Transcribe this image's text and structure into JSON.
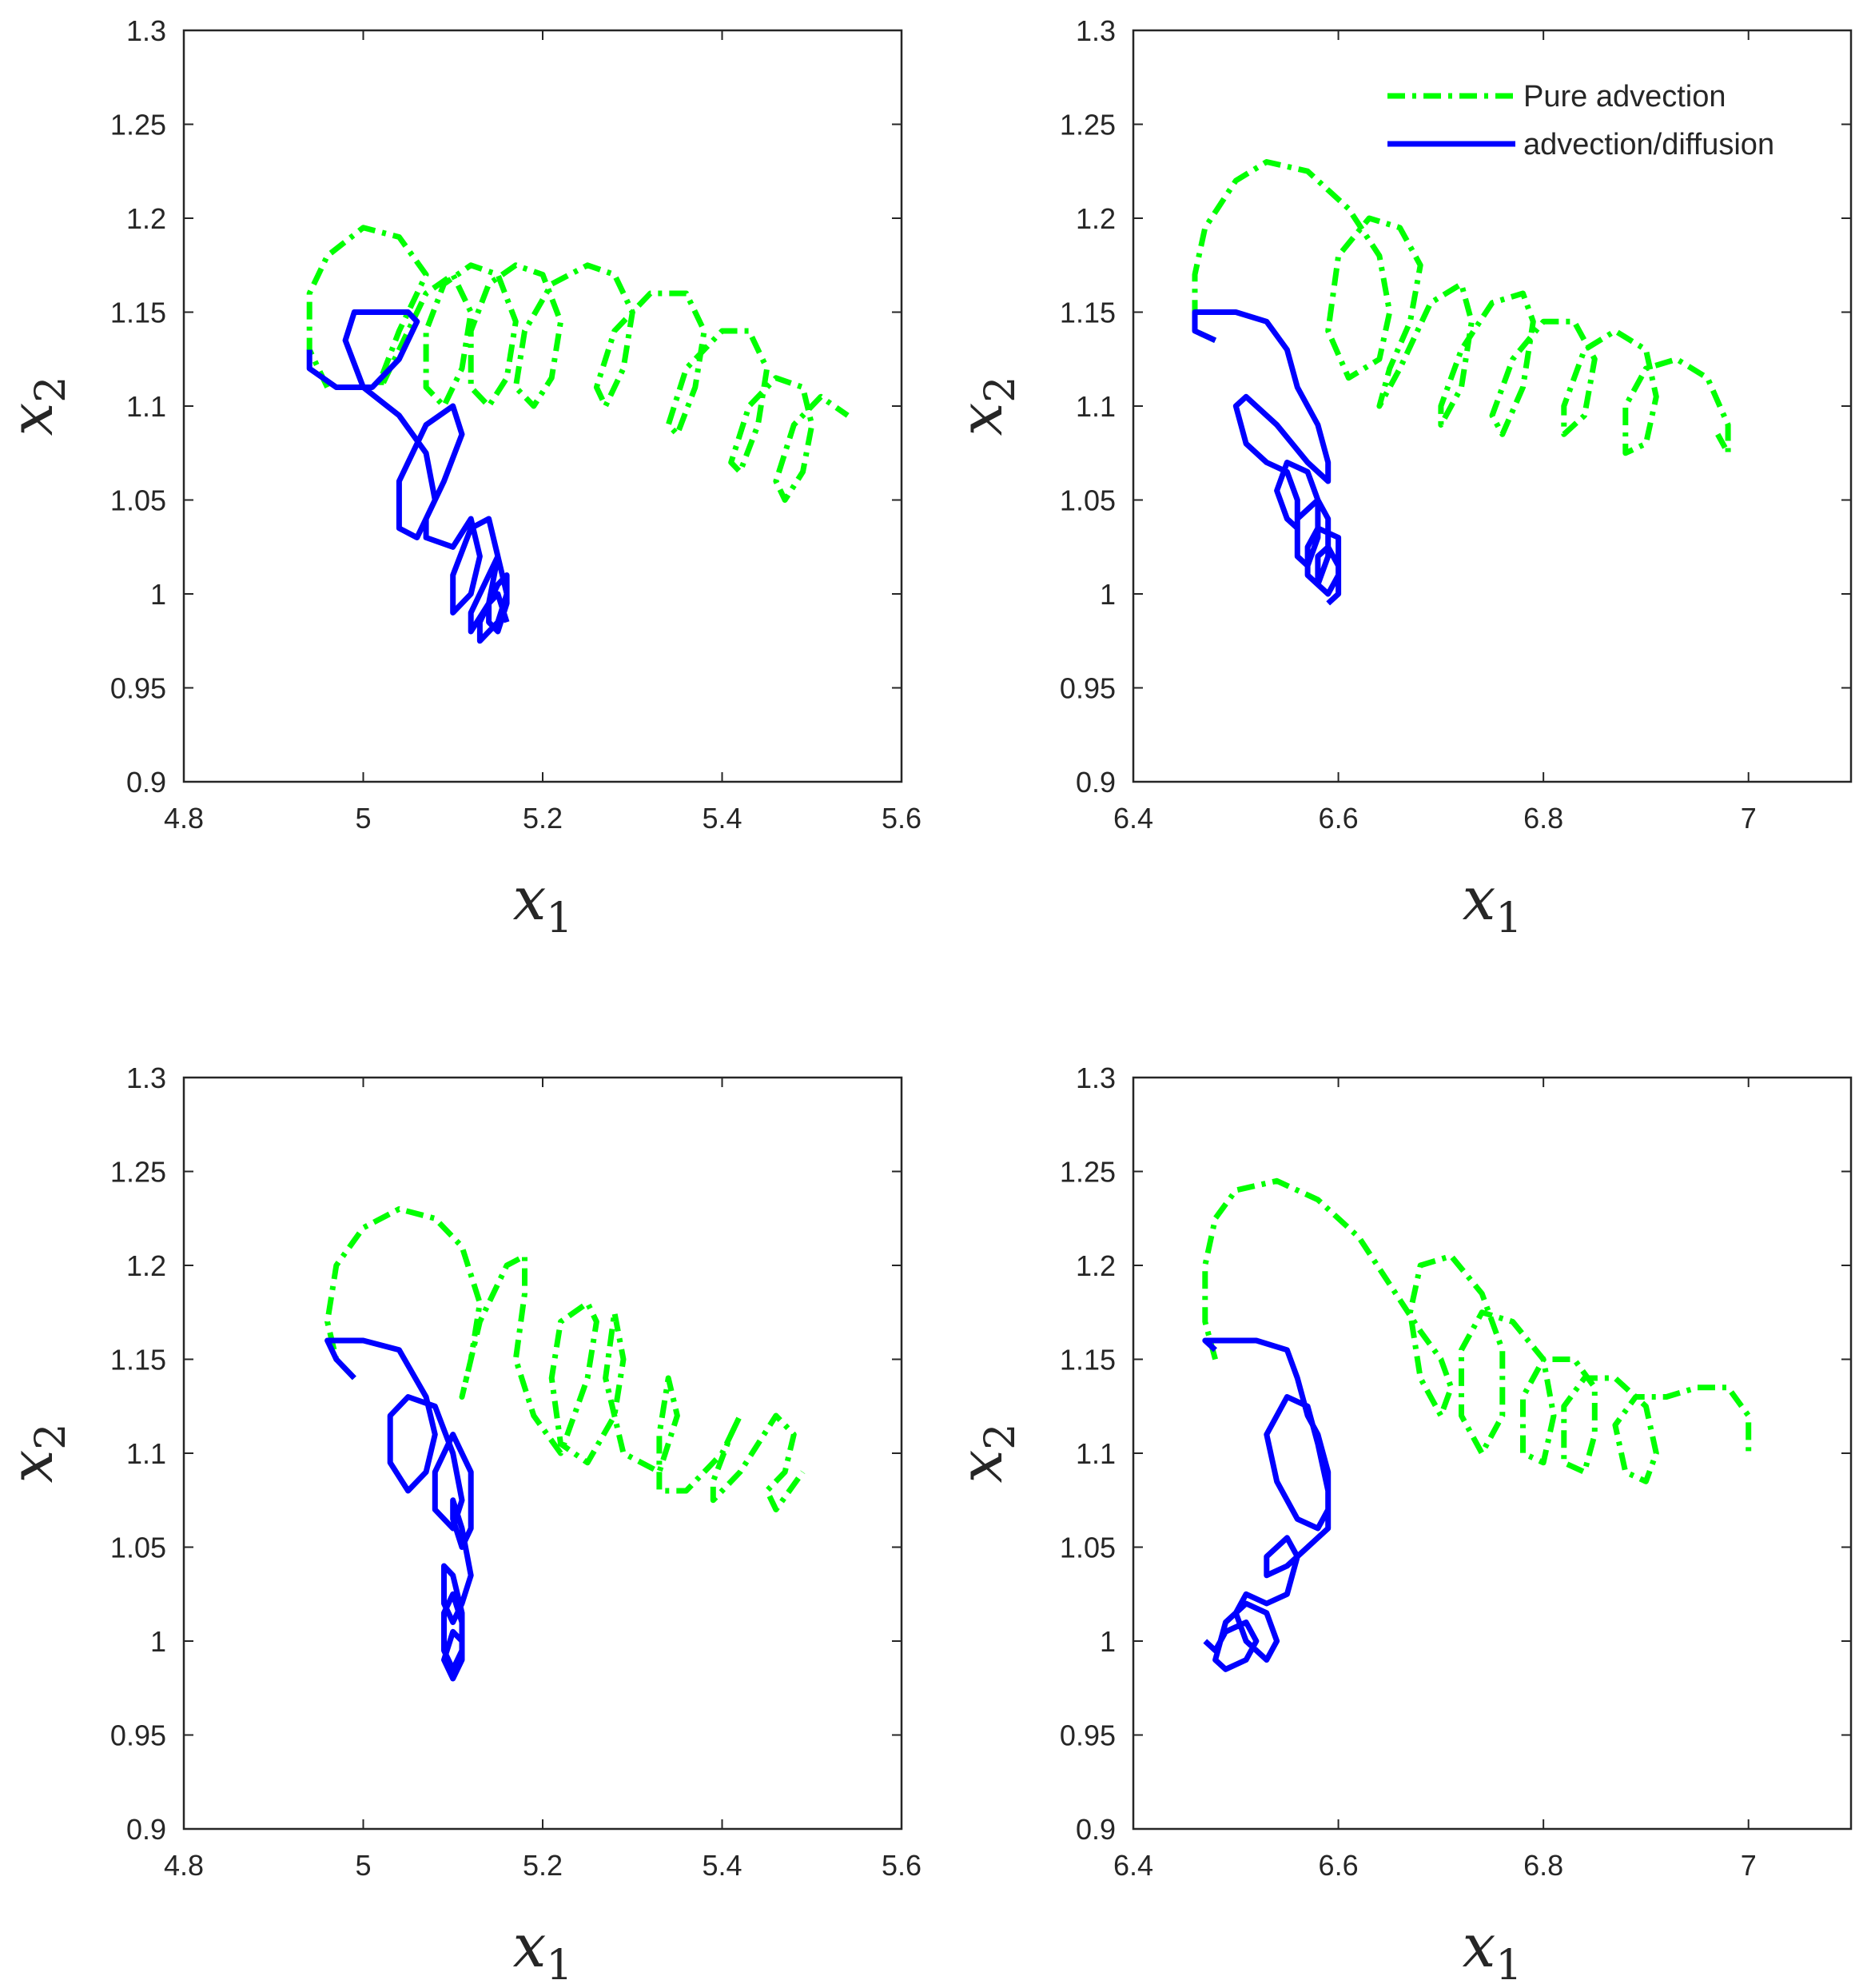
{
  "figure": {
    "colors": {
      "pure_advection": "#00ff00",
      "advection_diffusion": "#0000ff",
      "axes": "#262626"
    }
  },
  "chart_data": [
    {
      "type": "line",
      "panel": "top-left",
      "xlim": [
        4.8,
        5.6
      ],
      "ylim": [
        0.9,
        1.3
      ],
      "xticks": [
        "4.8",
        "5",
        "5.2",
        "5.4",
        "5.6"
      ],
      "yticks": [
        "0.9",
        "0.95",
        "1",
        "1.05",
        "1.1",
        "1.15",
        "1.2",
        "1.25",
        "1.3"
      ],
      "xlabel": "x",
      "xlabel_sub": "1",
      "ylabel": "x",
      "ylabel_sub": "2",
      "grid": false,
      "legend": null,
      "series": [
        {
          "name": "Pure advection",
          "style": "dash-dot",
          "color": "#00ff00",
          "x": [
            4.96,
            4.94,
            4.94,
            4.96,
            5.0,
            5.04,
            5.07,
            5.04,
            5.02,
            5.02,
            5.04,
            5.07,
            5.1,
            5.12,
            5.11,
            5.09,
            5.07,
            5.07,
            5.09,
            5.12,
            5.15,
            5.17,
            5.16,
            5.14,
            5.12,
            5.12,
            5.14,
            5.17,
            5.2,
            5.22,
            5.21,
            5.19,
            5.17,
            5.18,
            5.21,
            5.25,
            5.28,
            5.3,
            5.29,
            5.27,
            5.26,
            5.28,
            5.32,
            5.36,
            5.38,
            5.37,
            5.35,
            5.34,
            5.36,
            5.4,
            5.43,
            5.45,
            5.44,
            5.42,
            5.41,
            5.43,
            5.46,
            5.49,
            5.5,
            5.49,
            5.47,
            5.46,
            5.48,
            5.51,
            5.54
          ],
          "y": [
            1.11,
            1.13,
            1.16,
            1.18,
            1.195,
            1.19,
            1.17,
            1.14,
            1.115,
            1.11,
            1.13,
            1.16,
            1.17,
            1.15,
            1.12,
            1.1,
            1.11,
            1.14,
            1.165,
            1.175,
            1.17,
            1.145,
            1.115,
            1.1,
            1.11,
            1.14,
            1.165,
            1.175,
            1.17,
            1.145,
            1.115,
            1.1,
            1.11,
            1.14,
            1.165,
            1.175,
            1.17,
            1.15,
            1.12,
            1.1,
            1.11,
            1.14,
            1.16,
            1.16,
            1.14,
            1.11,
            1.085,
            1.09,
            1.12,
            1.14,
            1.14,
            1.12,
            1.09,
            1.065,
            1.07,
            1.1,
            1.115,
            1.11,
            1.09,
            1.065,
            1.05,
            1.06,
            1.09,
            1.105,
            1.095
          ]
        },
        {
          "name": "advection/diffusion",
          "style": "solid",
          "color": "#0000ff",
          "x": [
            4.94,
            4.94,
            4.97,
            5.01,
            5.04,
            5.06,
            5.05,
            5.02,
            4.99,
            4.98,
            5.0,
            5.04,
            5.07,
            5.08,
            5.06,
            5.04,
            5.04,
            5.07,
            5.1,
            5.11,
            5.09,
            5.07,
            5.07,
            5.1,
            5.12,
            5.13,
            5.12,
            5.1,
            5.1,
            5.12,
            5.14,
            5.15,
            5.14,
            5.12,
            5.12,
            5.14,
            5.15,
            5.16,
            5.15,
            5.13,
            5.13,
            5.15,
            5.16,
            5.16,
            5.15,
            5.14,
            5.14,
            5.15,
            5.16
          ],
          "y": [
            1.13,
            1.12,
            1.11,
            1.11,
            1.125,
            1.145,
            1.15,
            1.15,
            1.15,
            1.135,
            1.11,
            1.095,
            1.075,
            1.05,
            1.03,
            1.035,
            1.06,
            1.09,
            1.1,
            1.085,
            1.06,
            1.04,
            1.03,
            1.025,
            1.04,
            1.02,
            1.0,
            0.99,
            1.01,
            1.035,
            1.04,
            1.02,
            0.995,
            0.98,
            0.99,
            1.01,
            1.02,
            1.0,
            0.985,
            0.975,
            0.985,
            1.005,
            1.01,
            0.995,
            0.98,
            0.985,
            0.995,
            1.0,
            0.985
          ]
        }
      ]
    },
    {
      "type": "line",
      "panel": "top-right",
      "xlim": [
        6.4,
        7.1
      ],
      "ylim": [
        0.9,
        1.3
      ],
      "xticks": [
        "6.4",
        "6.6",
        "6.8",
        "7"
      ],
      "yticks": [
        "0.9",
        "0.95",
        "1",
        "1.05",
        "1.1",
        "1.15",
        "1.2",
        "1.25",
        "1.3"
      ],
      "xlabel": "x",
      "xlabel_sub": "1",
      "ylabel": "x",
      "ylabel_sub": "2",
      "grid": false,
      "legend": {
        "placement": "top-right",
        "entries": [
          "Pure advection",
          "advection/diffusion"
        ]
      },
      "series": [
        {
          "name": "Pure advection",
          "style": "dash-dot",
          "color": "#00ff00",
          "x": [
            6.48,
            6.46,
            6.46,
            6.47,
            6.5,
            6.53,
            6.57,
            6.61,
            6.64,
            6.65,
            6.64,
            6.61,
            6.59,
            6.6,
            6.63,
            6.66,
            6.68,
            6.67,
            6.65,
            6.64,
            6.66,
            6.69,
            6.72,
            6.73,
            6.72,
            6.7,
            6.7,
            6.72,
            6.75,
            6.78,
            6.79,
            6.78,
            6.76,
            6.75,
            6.77,
            6.8,
            6.83,
            6.85,
            6.84,
            6.82,
            6.82,
            6.84,
            6.87,
            6.9,
            6.91,
            6.9,
            6.88,
            6.88,
            6.9,
            6.93,
            6.96,
            6.98,
            6.98,
            6.97
          ],
          "y": [
            1.135,
            1.14,
            1.17,
            1.195,
            1.22,
            1.23,
            1.225,
            1.205,
            1.18,
            1.15,
            1.125,
            1.115,
            1.14,
            1.18,
            1.2,
            1.195,
            1.175,
            1.145,
            1.12,
            1.1,
            1.12,
            1.155,
            1.165,
            1.145,
            1.11,
            1.09,
            1.1,
            1.13,
            1.155,
            1.16,
            1.145,
            1.11,
            1.085,
            1.095,
            1.125,
            1.145,
            1.145,
            1.125,
            1.095,
            1.085,
            1.1,
            1.13,
            1.14,
            1.13,
            1.105,
            1.08,
            1.075,
            1.1,
            1.12,
            1.125,
            1.115,
            1.09,
            1.075,
            1.085
          ]
        },
        {
          "name": "advection/diffusion",
          "style": "solid",
          "color": "#0000ff",
          "x": [
            6.48,
            6.46,
            6.46,
            6.5,
            6.53,
            6.55,
            6.56,
            6.58,
            6.59,
            6.59,
            6.57,
            6.54,
            6.51,
            6.5,
            6.51,
            6.53,
            6.55,
            6.56,
            6.56,
            6.55,
            6.54,
            6.55,
            6.57,
            6.58,
            6.58,
            6.57,
            6.56,
            6.56,
            6.58,
            6.59,
            6.59,
            6.58,
            6.57,
            6.57,
            6.58,
            6.6,
            6.6,
            6.59,
            6.58,
            6.58,
            6.59,
            6.6,
            6.6,
            6.59
          ],
          "y": [
            1.135,
            1.14,
            1.15,
            1.15,
            1.145,
            1.13,
            1.11,
            1.09,
            1.07,
            1.06,
            1.07,
            1.09,
            1.105,
            1.1,
            1.08,
            1.07,
            1.065,
            1.05,
            1.035,
            1.04,
            1.055,
            1.07,
            1.065,
            1.05,
            1.03,
            1.015,
            1.02,
            1.04,
            1.05,
            1.04,
            1.02,
            1.005,
            1.01,
            1.025,
            1.035,
            1.03,
            1.01,
            1.0,
            1.005,
            1.02,
            1.025,
            1.015,
            1.0,
            0.995
          ]
        }
      ]
    },
    {
      "type": "line",
      "panel": "bottom-left",
      "xlim": [
        4.8,
        5.6
      ],
      "ylim": [
        0.9,
        1.3
      ],
      "xticks": [
        "4.8",
        "5",
        "5.2",
        "5.4",
        "5.6"
      ],
      "yticks": [
        "0.9",
        "0.95",
        "1",
        "1.05",
        "1.1",
        "1.15",
        "1.2",
        "1.25",
        "1.3"
      ],
      "xlabel": "x",
      "xlabel_sub": "1",
      "ylabel": "x",
      "ylabel_sub": "2",
      "grid": false,
      "legend": null,
      "series": [
        {
          "name": "Pure advection",
          "style": "dash-dot",
          "color": "#00ff00",
          "x": [
            4.99,
            4.97,
            4.96,
            4.97,
            5.0,
            5.04,
            5.08,
            5.11,
            5.13,
            5.12,
            5.11,
            5.13,
            5.16,
            5.18,
            5.18,
            5.17,
            5.19,
            5.22,
            5.25,
            5.26,
            5.25,
            5.22,
            5.21,
            5.22,
            5.25,
            5.28,
            5.29,
            5.28,
            5.27,
            5.29,
            5.33,
            5.35,
            5.34,
            5.33,
            5.33,
            5.36,
            5.4,
            5.42,
            5.41,
            5.39,
            5.39,
            5.42,
            5.46,
            5.48,
            5.47,
            5.45,
            5.46,
            5.49
          ],
          "y": [
            1.14,
            1.15,
            1.17,
            1.2,
            1.22,
            1.23,
            1.225,
            1.21,
            1.18,
            1.15,
            1.13,
            1.17,
            1.2,
            1.205,
            1.185,
            1.15,
            1.12,
            1.1,
            1.14,
            1.17,
            1.18,
            1.17,
            1.14,
            1.105,
            1.095,
            1.12,
            1.15,
            1.175,
            1.14,
            1.1,
            1.09,
            1.12,
            1.14,
            1.11,
            1.08,
            1.08,
            1.1,
            1.12,
            1.11,
            1.085,
            1.075,
            1.09,
            1.12,
            1.11,
            1.09,
            1.08,
            1.07,
            1.09
          ]
        },
        {
          "name": "advection/diffusion",
          "style": "solid",
          "color": "#0000ff",
          "x": [
            4.99,
            4.97,
            4.96,
            5.0,
            5.04,
            5.07,
            5.08,
            5.07,
            5.05,
            5.03,
            5.03,
            5.05,
            5.08,
            5.1,
            5.11,
            5.1,
            5.08,
            5.08,
            5.1,
            5.12,
            5.12,
            5.11,
            5.1,
            5.1,
            5.11,
            5.12,
            5.11,
            5.1,
            5.09,
            5.09,
            5.1,
            5.11,
            5.11,
            5.1,
            5.09,
            5.09,
            5.1,
            5.11,
            5.11,
            5.1,
            5.09,
            5.1,
            5.11
          ],
          "y": [
            1.14,
            1.15,
            1.16,
            1.16,
            1.155,
            1.13,
            1.11,
            1.09,
            1.08,
            1.095,
            1.12,
            1.13,
            1.125,
            1.1,
            1.075,
            1.06,
            1.07,
            1.09,
            1.11,
            1.09,
            1.06,
            1.05,
            1.065,
            1.075,
            1.06,
            1.035,
            1.02,
            1.01,
            1.02,
            1.04,
            1.035,
            1.015,
            0.995,
            0.985,
            0.995,
            1.015,
            1.025,
            1.01,
            0.99,
            0.98,
            0.99,
            1.005,
            1.0
          ]
        }
      ]
    },
    {
      "type": "line",
      "panel": "bottom-right",
      "xlim": [
        6.4,
        7.1
      ],
      "ylim": [
        0.9,
        1.3
      ],
      "xticks": [
        "6.4",
        "6.6",
        "6.8",
        "7"
      ],
      "yticks": [
        "0.9",
        "0.95",
        "1",
        "1.05",
        "1.1",
        "1.15",
        "1.2",
        "1.25",
        "1.3"
      ],
      "xlabel": "x",
      "xlabel_sub": "1",
      "ylabel": "x",
      "ylabel_sub": "2",
      "grid": false,
      "legend": null,
      "series": [
        {
          "name": "Pure advection",
          "style": "dash-dot",
          "color": "#00ff00",
          "x": [
            6.48,
            6.47,
            6.47,
            6.48,
            6.5,
            6.54,
            6.58,
            6.62,
            6.65,
            6.68,
            6.7,
            6.71,
            6.7,
            6.68,
            6.67,
            6.68,
            6.71,
            6.74,
            6.76,
            6.76,
            6.74,
            6.72,
            6.72,
            6.74,
            6.77,
            6.8,
            6.81,
            6.8,
            6.78,
            6.78,
            6.8,
            6.83,
            6.85,
            6.85,
            6.84,
            6.82,
            6.82,
            6.84,
            6.87,
            6.9,
            6.91,
            6.9,
            6.88,
            6.87,
            6.89,
            6.92,
            6.95,
            6.98,
            7.0,
            7.0
          ],
          "y": [
            1.15,
            1.17,
            1.2,
            1.225,
            1.24,
            1.245,
            1.235,
            1.215,
            1.19,
            1.165,
            1.15,
            1.135,
            1.12,
            1.14,
            1.175,
            1.2,
            1.205,
            1.185,
            1.155,
            1.12,
            1.1,
            1.12,
            1.155,
            1.175,
            1.17,
            1.15,
            1.12,
            1.095,
            1.1,
            1.13,
            1.15,
            1.15,
            1.135,
            1.11,
            1.09,
            1.095,
            1.125,
            1.14,
            1.14,
            1.125,
            1.1,
            1.085,
            1.09,
            1.115,
            1.13,
            1.13,
            1.135,
            1.135,
            1.12,
            1.1
          ]
        },
        {
          "name": "advection/diffusion",
          "style": "solid",
          "color": "#0000ff",
          "x": [
            6.48,
            6.47,
            6.48,
            6.52,
            6.55,
            6.56,
            6.57,
            6.58,
            6.59,
            6.59,
            6.58,
            6.56,
            6.54,
            6.53,
            6.55,
            6.57,
            6.58,
            6.59,
            6.59,
            6.57,
            6.55,
            6.53,
            6.53,
            6.55,
            6.56,
            6.55,
            6.53,
            6.51,
            6.5,
            6.51,
            6.53,
            6.54,
            6.53,
            6.51,
            6.49,
            6.48,
            6.49,
            6.51,
            6.52,
            6.51,
            6.49,
            6.48,
            6.47
          ],
          "y": [
            1.155,
            1.16,
            1.16,
            1.16,
            1.155,
            1.14,
            1.12,
            1.11,
            1.09,
            1.07,
            1.06,
            1.065,
            1.085,
            1.11,
            1.13,
            1.125,
            1.105,
            1.08,
            1.06,
            1.05,
            1.04,
            1.035,
            1.045,
            1.055,
            1.045,
            1.025,
            1.02,
            1.025,
            1.015,
            1.0,
            0.99,
            1.0,
            1.015,
            1.02,
            1.01,
            0.99,
            0.985,
            0.99,
            1.0,
            1.01,
            1.005,
            0.995,
            1.0
          ]
        }
      ]
    }
  ]
}
